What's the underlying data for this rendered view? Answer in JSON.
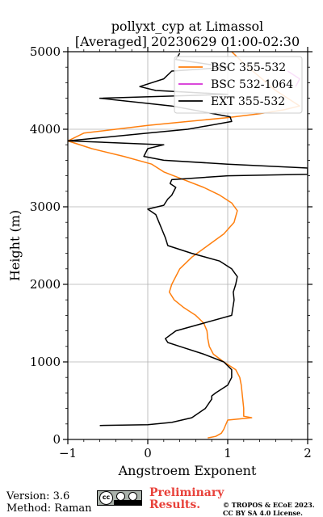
{
  "chart_data": {
    "type": "line",
    "title": "pollyxt_cyp at Limassol",
    "subtitle": "[Averaged] 20230629 01:00-02:30",
    "xlabel": "Angstroem Exponent",
    "ylabel": "Height (m)",
    "xlim": [
      -1,
      2
    ],
    "ylim": [
      0,
      5000
    ],
    "xticks": [
      "−1",
      "0",
      "1",
      "2"
    ],
    "yticks": [
      "0",
      "1000",
      "2000",
      "3000",
      "4000",
      "5000"
    ],
    "grid": true,
    "legend_position": "top-right",
    "series": [
      {
        "name": "BSC 355-532",
        "color": "#ff7f0e",
        "x": [
          0.75,
          0.85,
          0.92,
          0.95,
          1.0,
          1.3,
          1.2,
          1.2,
          1.19,
          1.18,
          1.17,
          1.15,
          1.1,
          0.95,
          0.82,
          0.77,
          0.75,
          0.74,
          0.7,
          0.6,
          0.45,
          0.33,
          0.27,
          0.3,
          0.4,
          0.55,
          0.75,
          0.95,
          1.08,
          1.12,
          1.05,
          0.9,
          0.7,
          0.45,
          0.2,
          0.05,
          -0.3,
          -0.7,
          -1.0,
          -0.8,
          -0.4,
          0.0,
          0.5,
          1.0,
          1.4,
          1.7,
          1.9,
          1.6,
          1.2,
          1.05
        ],
        "y": [
          20,
          40,
          80,
          130,
          250,
          280,
          300,
          400,
          500,
          600,
          700,
          800,
          900,
          1000,
          1100,
          1200,
          1300,
          1400,
          1500,
          1600,
          1700,
          1800,
          1900,
          2000,
          2200,
          2350,
          2500,
          2650,
          2800,
          2950,
          3050,
          3150,
          3250,
          3350,
          3450,
          3550,
          3650,
          3750,
          3850,
          3950,
          4000,
          4050,
          4100,
          4150,
          4200,
          4250,
          4300,
          4500,
          4850,
          5000
        ]
      },
      {
        "name": "BSC 532-1064",
        "color": "#d62fd6",
        "x": [
          1.85,
          1.9,
          1.75
        ],
        "y": [
          4550,
          4650,
          4750
        ]
      },
      {
        "name": "EXT 355-532",
        "color": "#000000",
        "x": [
          -0.6,
          0.0,
          0.3,
          0.55,
          0.72,
          0.8,
          0.8,
          0.85,
          1.0,
          1.05,
          1.05,
          0.95,
          0.7,
          0.4,
          0.25,
          0.22,
          0.35,
          0.7,
          1.05,
          1.08,
          1.07,
          1.1,
          1.12,
          1.05,
          0.9,
          0.55,
          0.25,
          0.22,
          0.14,
          0.1,
          0.0,
          0.2,
          0.25,
          0.3,
          0.35,
          0.28,
          0.3,
          1.0,
          2.0,
          2.0,
          1.0,
          0.2,
          -0.05,
          0.0,
          0.2,
          -1.0,
          -0.5,
          0.0,
          0.5,
          1.05,
          1.03,
          0.3,
          -0.6,
          1.0,
          0.1,
          -0.1,
          0.2,
          0.3,
          1.0,
          0.35,
          0.4
        ],
        "y": [
          180,
          190,
          220,
          280,
          400,
          520,
          560,
          600,
          700,
          800,
          900,
          1000,
          1100,
          1200,
          1250,
          1300,
          1400,
          1500,
          1600,
          1800,
          1900,
          2000,
          2100,
          2200,
          2300,
          2400,
          2500,
          2600,
          2800,
          2900,
          2970,
          3020,
          3100,
          3150,
          3250,
          3300,
          3350,
          3400,
          3420,
          3500,
          3550,
          3600,
          3650,
          3750,
          3800,
          3850,
          3900,
          3950,
          4000,
          4100,
          4160,
          4300,
          4400,
          4450,
          4500,
          4550,
          4650,
          4750,
          4800,
          4900,
          4980
        ]
      }
    ]
  },
  "footer": {
    "version": "Version: 3.6",
    "method": "Method: Raman",
    "cc_badge": "cc",
    "preliminary_line1": "Preliminary",
    "preliminary_line2": "Results.",
    "copyright_line1": "© TROPOS & ECoE 2023.",
    "copyright_line2": "CC BY SA 4.0 License."
  }
}
